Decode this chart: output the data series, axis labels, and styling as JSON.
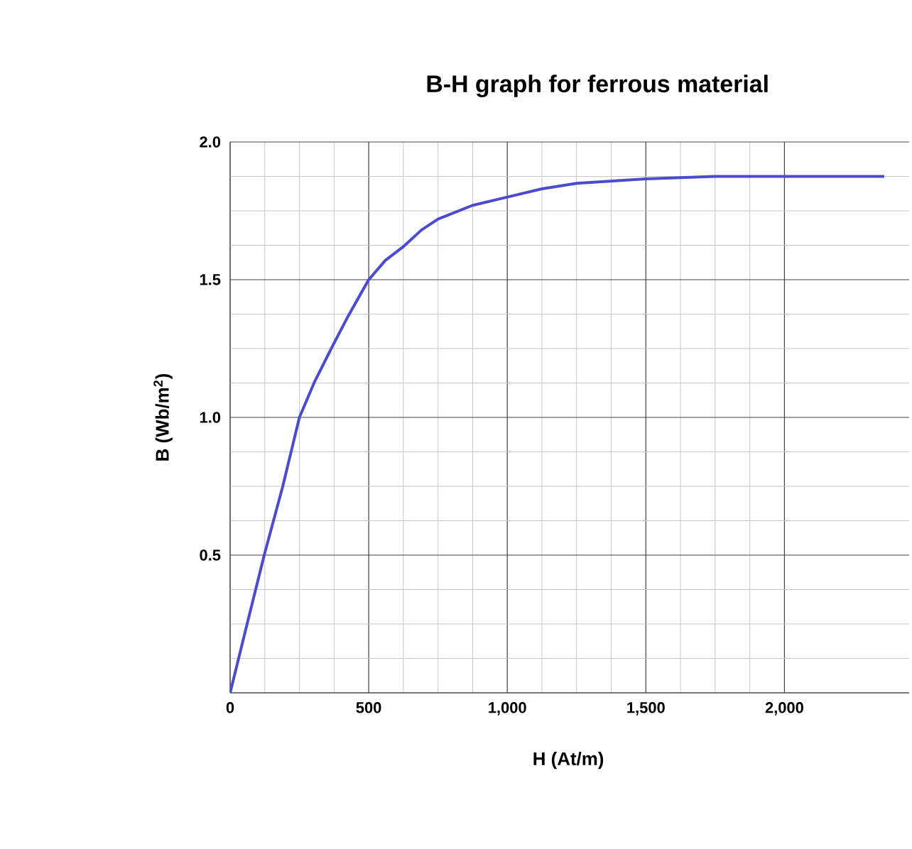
{
  "chart_data": {
    "type": "line",
    "title": "B-H graph for ferrous material",
    "xlabel": "H (At/m)",
    "ylabel": "B (Wb/m$^{2}$)",
    "x": [
      0,
      60,
      123,
      190,
      250,
      305,
      370,
      427,
      500,
      560,
      625,
      690,
      750,
      875,
      1000,
      1125,
      1250,
      1500,
      1750,
      2000,
      2360
    ],
    "series": [
      {
        "color": "#4b4bd0",
        "values": [
          0,
          0.245,
          0.5,
          0.75,
          1.0,
          1.13,
          1.26,
          1.37,
          1.5,
          1.57,
          1.62,
          1.68,
          1.72,
          1.77,
          1.8,
          1.83,
          1.85,
          1.866,
          1.875,
          1.875,
          1.875
        ]
      }
    ],
    "xlim": [
      0,
      2450
    ],
    "ylim": [
      0,
      2.0
    ],
    "xticks": [
      0,
      500,
      {
        "value": 1000,
        "label": "1,000"
      },
      {
        "value": 1500,
        "label": "1,500"
      },
      {
        "value": 2000,
        "label": "2,000"
      }
    ],
    "yticks": [
      {
        "value": 0,
        "label": null
      },
      0.5,
      {
        "value": 1.0,
        "label": "1.0"
      },
      1.5,
      {
        "value": 2.0,
        "label": "2.0"
      }
    ],
    "grid": true,
    "marker": "none",
    "line_style": "solid"
  }
}
